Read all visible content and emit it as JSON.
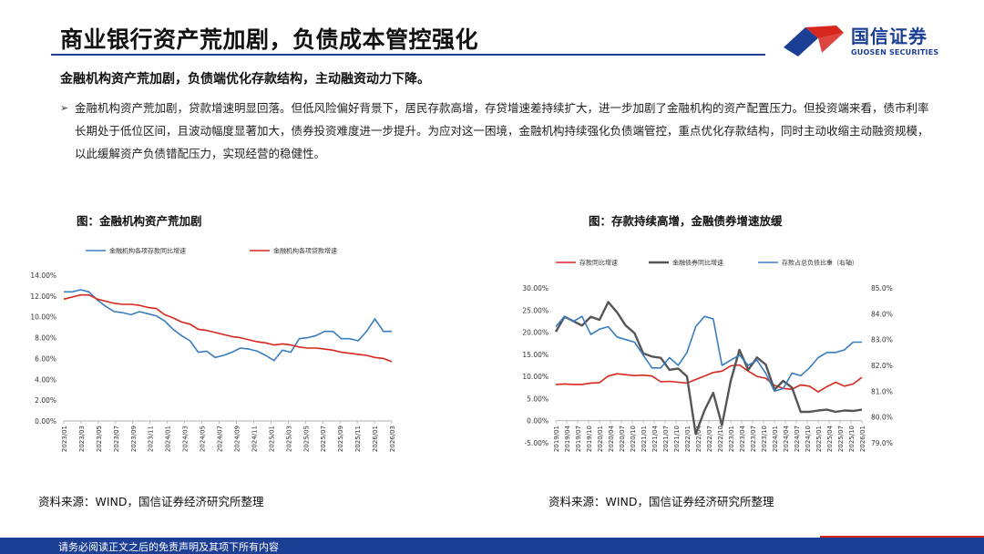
{
  "header": {
    "title": "商业银行资产荒加剧，负债成本管控强化",
    "logo_cn": "国信证券",
    "logo_en": "GUOSEN SECURITIES"
  },
  "subtitle": "金融机构资产荒加剧，负债端优化存款结构，主动融资动力下降。",
  "bullet_symbol": "➢",
  "body_text": "金融机构资产荒加剧，贷款增速明显回落。但低风险偏好背景下，居民存款高增，存贷增速差持续扩大，进一步加剧了金融机构的资产配置压力。但投资端来看，债市利率长期处于低位区间，且波动幅度显著加大，债券投资难度进一步提升。为应对这一困境，金融机构持续强化负债端管控，重点优化存款结构，同时主动收缩主动融资规模，以此缓解资产负债错配压力，实现经营的稳健性。",
  "footer": {
    "text": "请务必阅读正文之后的免责声明及其项下所有内容"
  },
  "colors": {
    "blue": "#3a7dbf",
    "red": "#d7261e",
    "gray": "#555555",
    "navy": "#1b3f95"
  },
  "chart_data": [
    {
      "type": "line",
      "title": "图：金融机构资产荒加剧",
      "source": "资料来源：WIND，国信证券经济研究所整理",
      "ylim": [
        0,
        14
      ],
      "y_ticks": [
        "0.00%",
        "2.00%",
        "4.00%",
        "6.00%",
        "8.00%",
        "10.00%",
        "12.00%",
        "14.00%"
      ],
      "y_tick_values": [
        0,
        2,
        4,
        6,
        8,
        10,
        12,
        14
      ],
      "x_ticks": [
        "2023/01",
        "2023/03",
        "2023/05",
        "2023/07",
        "2023/09",
        "2023/11",
        "2024/01",
        "2024/03",
        "2024/05",
        "2024/07",
        "2024/09",
        "2024/11",
        "2025/01",
        "2025/03",
        "2025/05",
        "2025/07",
        "2025/09",
        "2025/11",
        "2026/01",
        "2026/03"
      ],
      "legend_position": "top",
      "series": [
        {
          "name": "金融机构各项存款同比增速",
          "color": "#3a7dbf",
          "values": [
            12.4,
            12.4,
            12.6,
            12.4,
            11.6,
            11.0,
            10.5,
            10.4,
            10.2,
            10.5,
            10.3,
            10.1,
            9.6,
            8.8,
            8.2,
            7.7,
            6.6,
            6.7,
            6.1,
            6.3,
            6.6,
            7.0,
            6.9,
            6.7,
            6.3,
            5.8,
            6.8,
            6.6,
            7.9,
            8.0,
            8.2,
            8.6,
            8.6,
            7.9,
            7.9,
            7.7,
            8.6,
            9.8,
            8.6,
            8.6
          ]
        },
        {
          "name": "金融机构各项贷款增速",
          "color": "#d7261e",
          "values": [
            11.7,
            11.9,
            12.1,
            12.1,
            11.7,
            11.5,
            11.3,
            11.2,
            11.2,
            11.1,
            10.9,
            10.8,
            10.2,
            9.9,
            9.5,
            9.3,
            8.8,
            8.7,
            8.5,
            8.3,
            8.1,
            8.0,
            7.8,
            7.6,
            7.5,
            7.3,
            7.4,
            7.3,
            7.1,
            7.0,
            7.0,
            6.9,
            6.8,
            6.6,
            6.5,
            6.4,
            6.3,
            6.1,
            6.0,
            5.7
          ]
        }
      ]
    },
    {
      "type": "line",
      "title": "图：存款持续高增，金融债券增速放缓",
      "source": "资料来源：WIND，国信证券经济研究所整理",
      "ylim": [
        -5,
        30
      ],
      "y_ticks": [
        "-5.00%",
        "0.00%",
        "5.00%",
        "10.00%",
        "15.00%",
        "20.00%",
        "25.00%",
        "30.00%"
      ],
      "y_tick_values": [
        -5,
        0,
        5,
        10,
        15,
        20,
        25,
        30
      ],
      "y2lim": [
        79,
        85
      ],
      "y2_ticks": [
        "79.0%",
        "80.0%",
        "81.0%",
        "82.0%",
        "83.0%",
        "84.0%",
        "85.0%"
      ],
      "y2_tick_values": [
        79,
        80,
        81,
        82,
        83,
        84,
        85
      ],
      "x_ticks": [
        "2019/01",
        "2019/04",
        "2019/07",
        "2019/10",
        "2020/01",
        "2020/04",
        "2020/07",
        "2020/10",
        "2021/01",
        "2021/04",
        "2021/07",
        "2021/10",
        "2022/01",
        "2022/04",
        "2022/07",
        "2022/10",
        "2023/01",
        "2023/04",
        "2023/07",
        "2023/10",
        "2024/01",
        "2024/04",
        "2024/07",
        "2024/10",
        "2025/01",
        "2025/04",
        "2025/07",
        "2025/10",
        "2026/01"
      ],
      "legend_position": "top",
      "series": [
        {
          "name": "存款同比增速",
          "color": "#d7261e",
          "axis": "left",
          "values": [
            8.2,
            8.3,
            8.2,
            8.2,
            8.5,
            8.6,
            10.1,
            10.6,
            10.4,
            10.2,
            10.3,
            10.1,
            8.8,
            8.9,
            8.7,
            8.5,
            9.3,
            10.1,
            10.9,
            11.2,
            12.4,
            12.6,
            11.2,
            10.0,
            9.6,
            8.0,
            7.3,
            7.1,
            8.1,
            7.8,
            6.5,
            7.7,
            8.7,
            7.8,
            8.3,
            9.8
          ]
        },
        {
          "name": "金融债券同比增速",
          "color": "#555555",
          "axis": "left",
          "values": [
            20.1,
            23.5,
            22.5,
            21.5,
            23.5,
            22.8,
            26.8,
            24.5,
            21.5,
            19.8,
            15.2,
            14.5,
            14.2,
            11.5,
            11.8,
            10.0,
            -3.0,
            2.3,
            6.3,
            -1.0,
            9.0,
            16.0,
            11.5,
            14.3,
            12.7,
            7.0,
            9.0,
            7.5,
            2.0,
            2.0,
            2.3,
            2.5,
            2.0,
            2.3,
            2.2,
            2.5
          ]
        },
        {
          "name": "存款占总负债比重（右轴）",
          "color": "#3a7dbf",
          "axis": "right",
          "values": [
            83.5,
            83.9,
            83.7,
            83.9,
            83.2,
            83.4,
            83.5,
            83.1,
            83.0,
            82.9,
            82.4,
            81.9,
            81.9,
            82.3,
            82.0,
            82.5,
            83.5,
            83.9,
            83.8,
            82.0,
            82.2,
            82.4,
            82.0,
            82.2,
            81.7,
            81.0,
            81.1,
            81.7,
            81.6,
            81.9,
            82.3,
            82.5,
            82.5,
            82.6,
            82.9,
            82.9
          ]
        }
      ]
    }
  ]
}
